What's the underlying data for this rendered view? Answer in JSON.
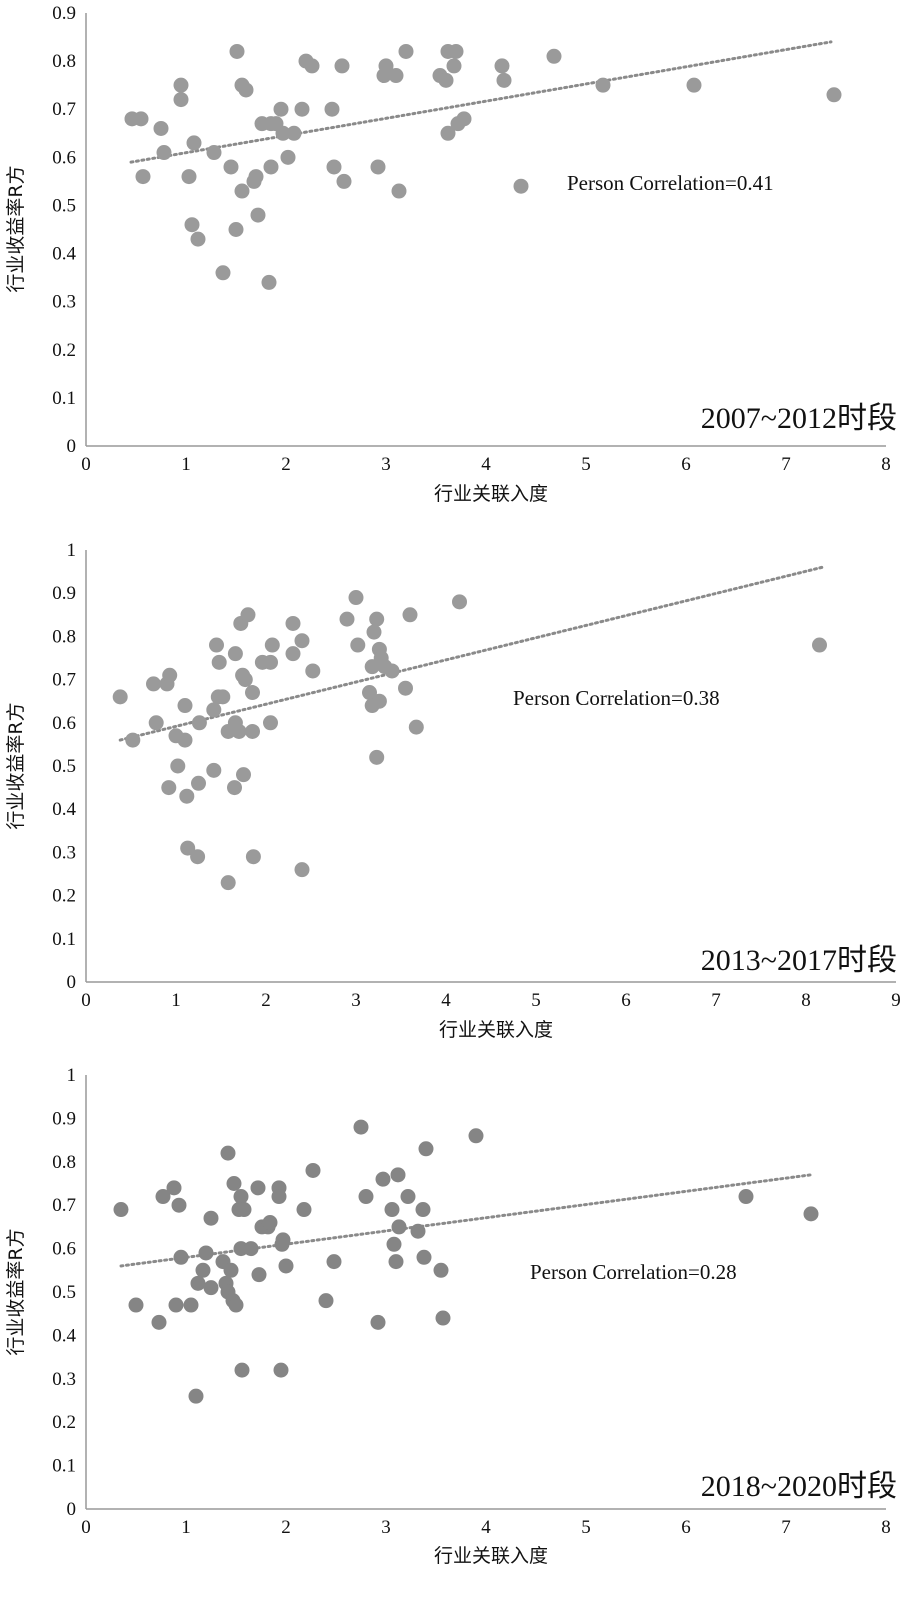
{
  "chart_data": [
    {
      "type": "scatter",
      "annotation": "Person Correlation=0.41",
      "period_label": "2007~2012时段",
      "xlabel": "行业关联入度",
      "ylabel": "行业收益率R方",
      "xlim": [
        0,
        8
      ],
      "ylim": [
        0,
        0.9
      ],
      "x_ticks": [
        "0",
        "1",
        "2",
        "3",
        "4",
        "5",
        "6",
        "7",
        "8"
      ],
      "y_ticks": [
        "0",
        "0.1",
        "0.2",
        "0.3",
        "0.4",
        "0.5",
        "0.6",
        "0.7",
        "0.8",
        "0.9"
      ],
      "point_color": "#9a9a9a",
      "trendline": {
        "x": [
          0.45,
          7.45
        ],
        "y": [
          0.59,
          0.84
        ]
      },
      "points": [
        [
          0.46,
          0.68
        ],
        [
          0.55,
          0.68
        ],
        [
          0.57,
          0.56
        ],
        [
          0.75,
          0.66
        ],
        [
          0.78,
          0.61
        ],
        [
          0.95,
          0.72
        ],
        [
          0.95,
          0.75
        ],
        [
          1.03,
          0.56
        ],
        [
          1.06,
          0.46
        ],
        [
          1.08,
          0.63
        ],
        [
          1.12,
          0.43
        ],
        [
          1.28,
          0.61
        ],
        [
          1.37,
          0.36
        ],
        [
          1.45,
          0.58
        ],
        [
          1.5,
          0.45
        ],
        [
          1.51,
          0.82
        ],
        [
          1.56,
          0.75
        ],
        [
          1.56,
          0.53
        ],
        [
          1.6,
          0.74
        ],
        [
          1.68,
          0.55
        ],
        [
          1.7,
          0.56
        ],
        [
          1.72,
          0.48
        ],
        [
          1.76,
          0.67
        ],
        [
          1.83,
          0.34
        ],
        [
          1.85,
          0.58
        ],
        [
          1.85,
          0.67
        ],
        [
          1.9,
          0.67
        ],
        [
          1.95,
          0.7
        ],
        [
          1.97,
          0.65
        ],
        [
          2.02,
          0.6
        ],
        [
          2.08,
          0.65
        ],
        [
          2.16,
          0.7
        ],
        [
          2.2,
          0.8
        ],
        [
          2.26,
          0.79
        ],
        [
          2.46,
          0.7
        ],
        [
          2.48,
          0.58
        ],
        [
          2.56,
          0.79
        ],
        [
          2.58,
          0.55
        ],
        [
          2.92,
          0.58
        ],
        [
          2.98,
          0.77
        ],
        [
          3.0,
          0.79
        ],
        [
          3.1,
          0.77
        ],
        [
          3.13,
          0.53
        ],
        [
          3.2,
          0.82
        ],
        [
          3.54,
          0.77
        ],
        [
          3.6,
          0.76
        ],
        [
          3.62,
          0.82
        ],
        [
          3.62,
          0.65
        ],
        [
          3.68,
          0.79
        ],
        [
          3.7,
          0.82
        ],
        [
          3.72,
          0.67
        ],
        [
          3.78,
          0.68
        ],
        [
          4.16,
          0.79
        ],
        [
          4.18,
          0.76
        ],
        [
          4.35,
          0.54
        ],
        [
          4.68,
          0.81
        ],
        [
          5.17,
          0.75
        ],
        [
          6.08,
          0.75
        ],
        [
          7.48,
          0.73
        ]
      ]
    },
    {
      "type": "scatter",
      "annotation": "Person Correlation=0.38",
      "period_label": "2013~2017时段",
      "xlabel": "行业关联入度",
      "ylabel": "行业收益率R方",
      "xlim": [
        0,
        9
      ],
      "ylim": [
        0,
        1
      ],
      "x_ticks": [
        "0",
        "1",
        "2",
        "3",
        "4",
        "5",
        "6",
        "7",
        "8",
        "9"
      ],
      "y_ticks": [
        "0",
        "0.1",
        "0.2",
        "0.3",
        "0.4",
        "0.5",
        "0.6",
        "0.7",
        "0.8",
        "0.9",
        "1"
      ],
      "point_color": "#9a9a9a",
      "trendline": {
        "x": [
          0.38,
          8.18
        ],
        "y": [
          0.56,
          0.96
        ]
      },
      "points": [
        [
          0.38,
          0.66
        ],
        [
          0.52,
          0.56
        ],
        [
          0.75,
          0.69
        ],
        [
          0.78,
          0.6
        ],
        [
          0.9,
          0.69
        ],
        [
          0.92,
          0.45
        ],
        [
          0.93,
          0.71
        ],
        [
          1.0,
          0.57
        ],
        [
          1.02,
          0.5
        ],
        [
          1.1,
          0.64
        ],
        [
          1.1,
          0.56
        ],
        [
          1.12,
          0.43
        ],
        [
          1.13,
          0.31
        ],
        [
          1.24,
          0.29
        ],
        [
          1.25,
          0.46
        ],
        [
          1.26,
          0.6
        ],
        [
          1.42,
          0.49
        ],
        [
          1.42,
          0.63
        ],
        [
          1.45,
          0.78
        ],
        [
          1.47,
          0.66
        ],
        [
          1.48,
          0.74
        ],
        [
          1.52,
          0.66
        ],
        [
          1.58,
          0.58
        ],
        [
          1.58,
          0.23
        ],
        [
          1.65,
          0.45
        ],
        [
          1.66,
          0.76
        ],
        [
          1.66,
          0.6
        ],
        [
          1.7,
          0.58
        ],
        [
          1.72,
          0.83
        ],
        [
          1.74,
          0.71
        ],
        [
          1.75,
          0.48
        ],
        [
          1.77,
          0.7
        ],
        [
          1.8,
          0.85
        ],
        [
          1.85,
          0.58
        ],
        [
          1.85,
          0.67
        ],
        [
          1.86,
          0.29
        ],
        [
          1.96,
          0.74
        ],
        [
          2.05,
          0.6
        ],
        [
          2.05,
          0.74
        ],
        [
          2.07,
          0.78
        ],
        [
          2.3,
          0.76
        ],
        [
          2.3,
          0.83
        ],
        [
          2.4,
          0.79
        ],
        [
          2.4,
          0.26
        ],
        [
          2.52,
          0.72
        ],
        [
          2.9,
          0.84
        ],
        [
          3.0,
          0.89
        ],
        [
          3.02,
          0.78
        ],
        [
          3.15,
          0.67
        ],
        [
          3.18,
          0.64
        ],
        [
          3.18,
          0.73
        ],
        [
          3.2,
          0.81
        ],
        [
          3.23,
          0.52
        ],
        [
          3.23,
          0.84
        ],
        [
          3.26,
          0.65
        ],
        [
          3.26,
          0.77
        ],
        [
          3.28,
          0.75
        ],
        [
          3.32,
          0.73
        ],
        [
          3.4,
          0.72
        ],
        [
          3.55,
          0.68
        ],
        [
          3.6,
          0.85
        ],
        [
          3.67,
          0.59
        ],
        [
          4.15,
          0.88
        ],
        [
          8.15,
          0.78
        ]
      ]
    },
    {
      "type": "scatter",
      "annotation": "Person Correlation=0.28",
      "period_label": "2018~2020时段",
      "xlabel": "行业关联入度",
      "ylabel": "行业收益率R方",
      "xlim": [
        0,
        8
      ],
      "ylim": [
        0,
        1
      ],
      "x_ticks": [
        "0",
        "1",
        "2",
        "3",
        "4",
        "5",
        "6",
        "7",
        "8"
      ],
      "y_ticks": [
        "0",
        "0.1",
        "0.2",
        "0.3",
        "0.4",
        "0.5",
        "0.6",
        "0.7",
        "0.8",
        "0.9",
        "1"
      ],
      "point_color": "#858585",
      "trendline": {
        "x": [
          0.35,
          7.25
        ],
        "y": [
          0.56,
          0.77
        ]
      },
      "points": [
        [
          0.35,
          0.69
        ],
        [
          0.5,
          0.47
        ],
        [
          0.73,
          0.43
        ],
        [
          0.77,
          0.72
        ],
        [
          0.88,
          0.74
        ],
        [
          0.9,
          0.47
        ],
        [
          0.93,
          0.7
        ],
        [
          0.95,
          0.58
        ],
        [
          1.05,
          0.47
        ],
        [
          1.1,
          0.26
        ],
        [
          1.12,
          0.52
        ],
        [
          1.17,
          0.55
        ],
        [
          1.2,
          0.59
        ],
        [
          1.25,
          0.51
        ],
        [
          1.25,
          0.67
        ],
        [
          1.37,
          0.57
        ],
        [
          1.4,
          0.52
        ],
        [
          1.42,
          0.5
        ],
        [
          1.42,
          0.82
        ],
        [
          1.45,
          0.55
        ],
        [
          1.47,
          0.48
        ],
        [
          1.48,
          0.75
        ],
        [
          1.5,
          0.47
        ],
        [
          1.53,
          0.69
        ],
        [
          1.55,
          0.6
        ],
        [
          1.55,
          0.72
        ],
        [
          1.56,
          0.32
        ],
        [
          1.58,
          0.69
        ],
        [
          1.65,
          0.6
        ],
        [
          1.72,
          0.74
        ],
        [
          1.73,
          0.54
        ],
        [
          1.76,
          0.65
        ],
        [
          1.82,
          0.65
        ],
        [
          1.84,
          0.66
        ],
        [
          1.93,
          0.74
        ],
        [
          1.93,
          0.72
        ],
        [
          1.95,
          0.32
        ],
        [
          1.96,
          0.61
        ],
        [
          1.97,
          0.62
        ],
        [
          2.0,
          0.56
        ],
        [
          2.18,
          0.69
        ],
        [
          2.27,
          0.78
        ],
        [
          2.4,
          0.48
        ],
        [
          2.48,
          0.57
        ],
        [
          2.75,
          0.88
        ],
        [
          2.8,
          0.72
        ],
        [
          2.92,
          0.43
        ],
        [
          2.97,
          0.76
        ],
        [
          3.06,
          0.69
        ],
        [
          3.08,
          0.61
        ],
        [
          3.1,
          0.57
        ],
        [
          3.12,
          0.77
        ],
        [
          3.13,
          0.65
        ],
        [
          3.22,
          0.72
        ],
        [
          3.32,
          0.64
        ],
        [
          3.37,
          0.69
        ],
        [
          3.38,
          0.58
        ],
        [
          3.4,
          0.83
        ],
        [
          3.55,
          0.55
        ],
        [
          3.57,
          0.44
        ],
        [
          3.9,
          0.86
        ],
        [
          6.6,
          0.72
        ],
        [
          7.25,
          0.68
        ]
      ]
    }
  ]
}
